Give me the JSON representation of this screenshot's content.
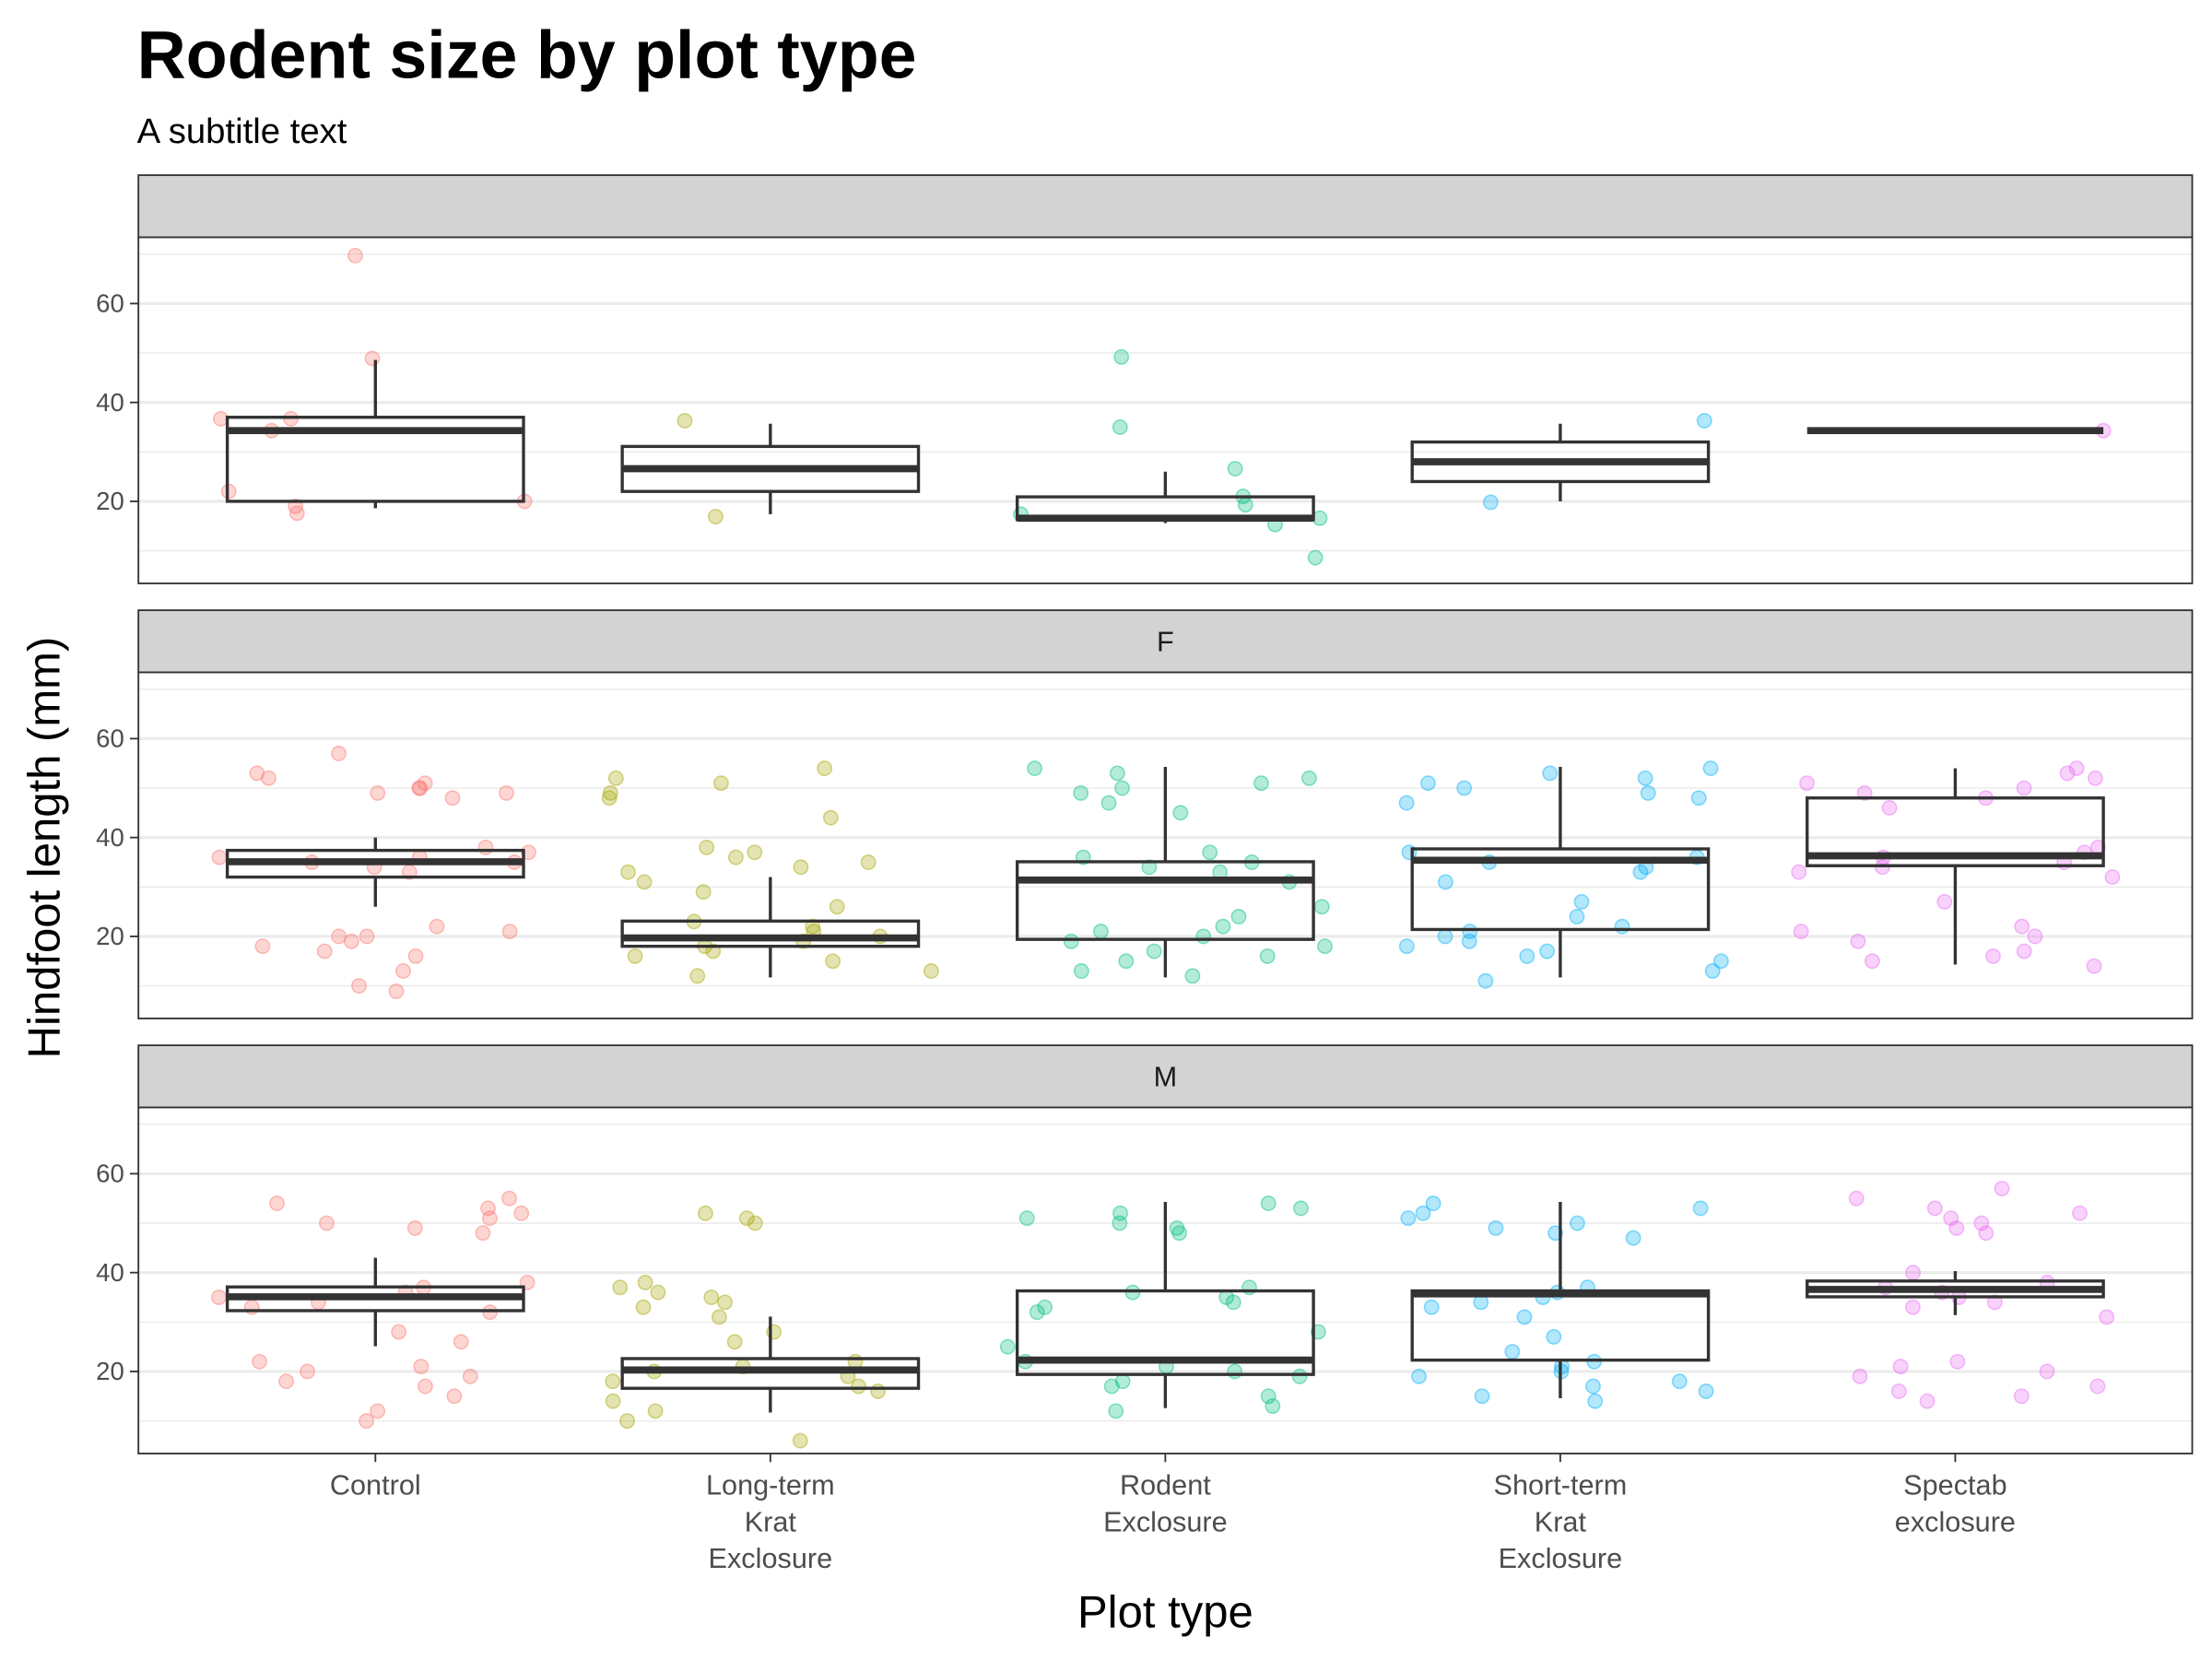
{
  "chart_data": {
    "type": "boxplot",
    "title": "Rodent size by plot type",
    "subtitle": "A subtitle text",
    "x_label": "Plot type",
    "y_label": "Hindfoot length (mm)",
    "categories": [
      "Control",
      "Long-term\nKrat\nExclosure",
      "Rodent\nExclosure",
      "Short-term\nKrat\nExclosure",
      "Spectab\nexclosure"
    ],
    "colors": [
      "#F8766D",
      "#A3A500",
      "#00BF7D",
      "#00B0F6",
      "#E76BF3"
    ],
    "ylim": [
      3.4,
      73.4
    ],
    "yticks": [
      20,
      40,
      60
    ],
    "grid": true,
    "facets": [
      {
        "label": null,
        "boxes": [
          {
            "min": 18.6,
            "q1": 20,
            "median": 34.3,
            "q3": 37,
            "max": 48.6
          },
          {
            "min": 17.4,
            "q1": 22,
            "median": 26.6,
            "q3": 31.1,
            "max": 35.7
          },
          {
            "min": 15.6,
            "q1": 16.3,
            "median": 16.6,
            "q3": 20.9,
            "max": 26
          },
          {
            "min": 20,
            "q1": 24,
            "median": 28,
            "q3": 32,
            "max": 35.7
          },
          {
            "min": 34.3,
            "q1": 34.3,
            "median": 34.3,
            "q3": 34.3,
            "max": 34.3
          }
        ],
        "points": [
          [
            69.7,
            48.9,
            36.7,
            36.7,
            34.3,
            22,
            20,
            19,
            17.6
          ],
          [
            36.3,
            16.9
          ],
          [
            49.2,
            35,
            26.6,
            21,
            19.3,
            17.4,
            16.6,
            15.3,
            8.6
          ],
          [
            36.3,
            19.8
          ],
          [
            34.3
          ]
        ]
      },
      {
        "label": "F",
        "boxes": [
          {
            "min": 26,
            "q1": 32,
            "median": 35.1,
            "q3": 37.4,
            "max": 40
          },
          {
            "min": 11.7,
            "q1": 18,
            "median": 19.7,
            "q3": 23.1,
            "max": 32
          },
          {
            "min": 11.7,
            "q1": 19.4,
            "median": 31.4,
            "q3": 35.1,
            "max": 54.3
          },
          {
            "min": 11.7,
            "q1": 21.4,
            "median": 35.4,
            "q3": 37.7,
            "max": 54.3
          },
          {
            "min": 14.3,
            "q1": 34.3,
            "median": 36.3,
            "q3": 48,
            "max": 54
          }
        ],
        "points": [
          [
            50,
            49,
            51,
            52,
            48,
            50,
            53,
            49,
            36,
            35,
            34,
            37,
            33,
            36,
            35,
            38,
            20,
            19,
            21,
            18,
            17,
            22,
            20,
            16,
            13,
            10,
            57,
            8.9
          ],
          [
            52,
            51,
            49,
            54,
            48,
            44,
            36,
            35,
            34,
            37,
            33,
            31,
            29,
            38,
            20,
            19,
            18,
            21,
            17,
            16,
            22,
            15,
            13,
            12,
            23,
            26
          ],
          [
            51,
            50,
            53,
            54,
            52,
            49,
            47,
            45,
            36,
            35,
            34,
            37,
            33,
            31,
            20,
            19,
            18,
            21,
            17,
            16,
            22,
            15,
            13,
            12,
            24,
            26
          ],
          [
            52,
            51,
            50,
            49,
            53,
            54,
            48,
            47,
            36,
            35,
            34,
            37,
            33,
            27,
            31,
            20,
            19,
            18,
            21,
            17,
            16,
            22,
            15,
            13,
            11,
            24
          ],
          [
            52,
            51,
            50,
            49,
            53,
            54,
            48,
            46,
            36,
            35,
            34,
            37,
            33,
            38,
            32,
            27,
            22,
            21,
            20,
            19,
            17,
            16,
            15,
            14
          ]
        ]
      },
      {
        "label": "M",
        "boxes": [
          {
            "min": 25.1,
            "q1": 32.3,
            "median": 35.1,
            "q3": 37.1,
            "max": 43
          },
          {
            "min": 11.7,
            "q1": 16.6,
            "median": 20.3,
            "q3": 22.6,
            "max": 31.1
          },
          {
            "min": 12.6,
            "q1": 19.4,
            "median": 22.3,
            "q3": 36.3,
            "max": 54.3
          },
          {
            "min": 14.6,
            "q1": 22.3,
            "median": 35.7,
            "q3": 36.3,
            "max": 54.3
          },
          {
            "min": 31.4,
            "q1": 35.1,
            "median": 36.6,
            "q3": 38.3,
            "max": 40.3
          }
        ],
        "points": [
          [
            52,
            51,
            50,
            49,
            53,
            54,
            48,
            55,
            36,
            35,
            34,
            37,
            33,
            32,
            38,
            28,
            26,
            21,
            20,
            19,
            18,
            17,
            22,
            15,
            12,
            10
          ],
          [
            52,
            51,
            50,
            38,
            36,
            35,
            34,
            37,
            33,
            31,
            28,
            26,
            22,
            21,
            20,
            19,
            18,
            17,
            16,
            14,
            12,
            10,
            6
          ],
          [
            52,
            51,
            50,
            49,
            53,
            54,
            48,
            36,
            35,
            34,
            37,
            33,
            32,
            28,
            25,
            21,
            20,
            19,
            18,
            17,
            22,
            15,
            13,
            12
          ],
          [
            52,
            51,
            50,
            49,
            53,
            54,
            48,
            47,
            36,
            35,
            34,
            37,
            33,
            27,
            31,
            21,
            20,
            19,
            18,
            17,
            16,
            22,
            15,
            14,
            24
          ],
          [
            53,
            52,
            51,
            50,
            49,
            48,
            55,
            57,
            37,
            36,
            35,
            38,
            34,
            33,
            40,
            31,
            22,
            21,
            20,
            19,
            17,
            16,
            15,
            14
          ]
        ]
      }
    ]
  }
}
